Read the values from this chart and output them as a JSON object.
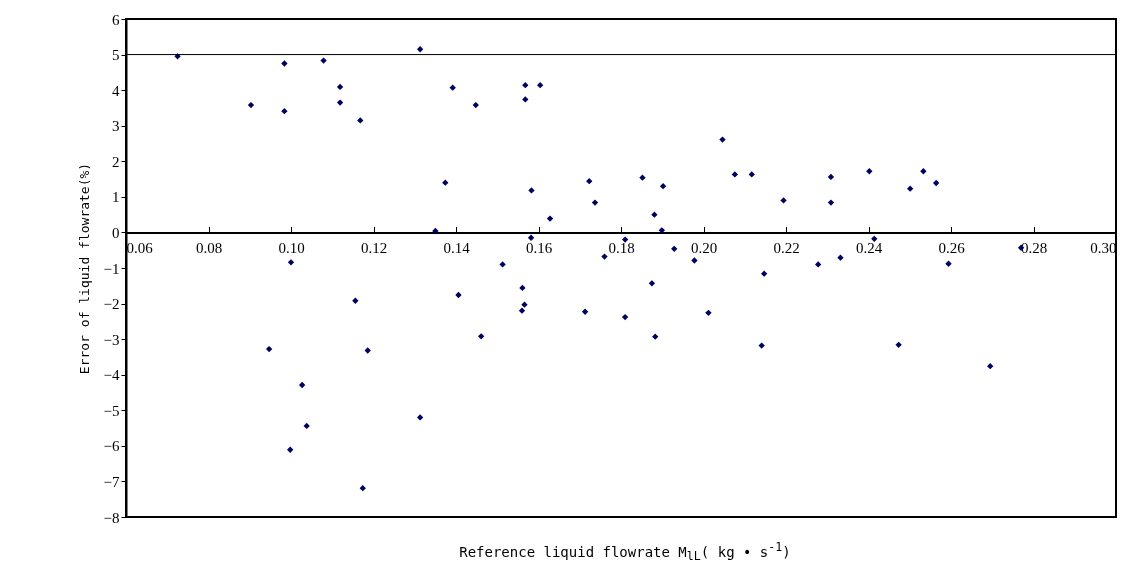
{
  "chart_data": {
    "type": "scatter",
    "xlabel": "Reference liquid flowrate M$_{lL}$( kg • s$^{-1}$)",
    "ylabel": "Error of liquid flowrate(%)",
    "xlim": [
      0.06,
      0.3
    ],
    "ylim": [
      -8,
      6
    ],
    "xticks": [
      0.06,
      0.08,
      {
        "value": 0.1,
        "label": "0.10"
      },
      0.12,
      0.14,
      0.16,
      0.18,
      {
        "value": 0.2,
        "label": "0.20"
      },
      0.22,
      0.24,
      0.26,
      0.28,
      {
        "value": 0.3,
        "label": "0.30"
      }
    ],
    "yticks": [
      -8,
      -7,
      -6,
      -5,
      -4,
      -3,
      -2,
      -1,
      0,
      1,
      2,
      3,
      4,
      5,
      6
    ],
    "grid": false,
    "marker": "diamond",
    "ref_lines": [
      {
        "axis": "y",
        "value": 5,
        "color": "#000000"
      }
    ],
    "series": [
      {
        "color": "#000060",
        "x": [
          0.0725,
          0.0903,
          0.0984,
          0.0984,
          0.1079,
          0.1119,
          0.1119,
          0.1168,
          0.1313,
          0.1374,
          0.135,
          0.1392,
          0.1,
          0.1448,
          0.1568,
          0.1568,
          0.1604,
          0.1583,
          0.1582,
          0.1628,
          0.1723,
          0.1737,
          0.181,
          0.1852,
          0.1902,
          0.1881,
          0.1899,
          0.1929,
          0.2046,
          0.2076,
          0.2117,
          0.2194,
          0.2309,
          0.2309,
          0.1513,
          0.176,
          0.1978,
          0.2147,
          0.2278,
          0.1561,
          0.1875,
          0.2402,
          0.2501,
          0.2533,
          0.2564,
          0.2414,
          0.277,
          0.2332,
          0.2594,
          0.1156,
          0.0947,
          0.1186,
          0.1027,
          0.1038,
          0.0998,
          0.1174,
          0.1313,
          0.1406,
          0.1566,
          0.156,
          0.1461,
          0.1713,
          0.181,
          0.1883,
          0.2012,
          0.2141,
          0.2473,
          0.2695
        ],
        "values": [
          4.95,
          3.58,
          4.75,
          3.41,
          4.83,
          4.09,
          3.65,
          3.15,
          5.15,
          1.4,
          0.04,
          4.07,
          -0.84,
          3.58,
          4.14,
          3.74,
          4.14,
          1.18,
          -0.15,
          0.39,
          1.44,
          0.84,
          -0.2,
          1.54,
          1.3,
          0.5,
          0.06,
          -0.46,
          2.61,
          1.63,
          1.63,
          0.9,
          1.56,
          0.84,
          -0.9,
          -0.68,
          -0.79,
          -1.16,
          -0.9,
          -1.56,
          -1.43,
          1.72,
          1.23,
          1.72,
          1.39,
          -0.18,
          -0.43,
          -0.71,
          -0.88,
          -1.92,
          -3.28,
          -3.32,
          -4.29,
          -5.44,
          -6.11,
          -7.19,
          -5.2,
          -1.76,
          -2.03,
          -2.2,
          -2.92,
          -2.23,
          -2.38,
          -2.93,
          -2.26,
          -3.18,
          -3.16,
          -3.76
        ]
      }
    ]
  }
}
